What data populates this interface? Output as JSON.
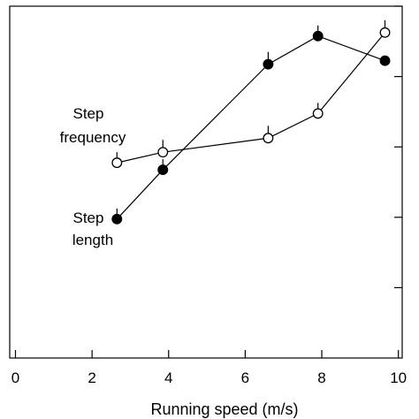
{
  "chart_data": {
    "type": "line",
    "xlabel": "Running speed (m/s)",
    "x_ticks": [
      "0",
      "2",
      "4",
      "6",
      "8",
      "10"
    ],
    "xlim": [
      -0.15,
      10.1
    ],
    "ylim": [
      0,
      1
    ],
    "y_ticks_unlabeled": [
      0.2,
      0.4,
      0.6,
      0.8,
      1.0
    ],
    "y_tick_labels_visible": false,
    "grid": false,
    "series": [
      {
        "name_lines": [
          "Step",
          "length"
        ],
        "marker": "filled-circle",
        "color": "#000000",
        "x": [
          2.65,
          3.85,
          6.6,
          7.9,
          9.65
        ],
        "y": [
          0.395,
          0.535,
          0.835,
          0.915,
          0.845
        ],
        "error_up": [
          0.03,
          0.03,
          0.035,
          0.03,
          0.0
        ]
      },
      {
        "name_lines": [
          "Step",
          "frequency"
        ],
        "marker": "open-circle",
        "color": "#000000",
        "x": [
          2.65,
          3.85,
          6.6,
          7.9,
          9.65
        ],
        "y": [
          0.555,
          0.585,
          0.625,
          0.695,
          0.925
        ],
        "error_up": [
          0.03,
          0.035,
          0.035,
          0.03,
          0.035
        ]
      }
    ]
  }
}
